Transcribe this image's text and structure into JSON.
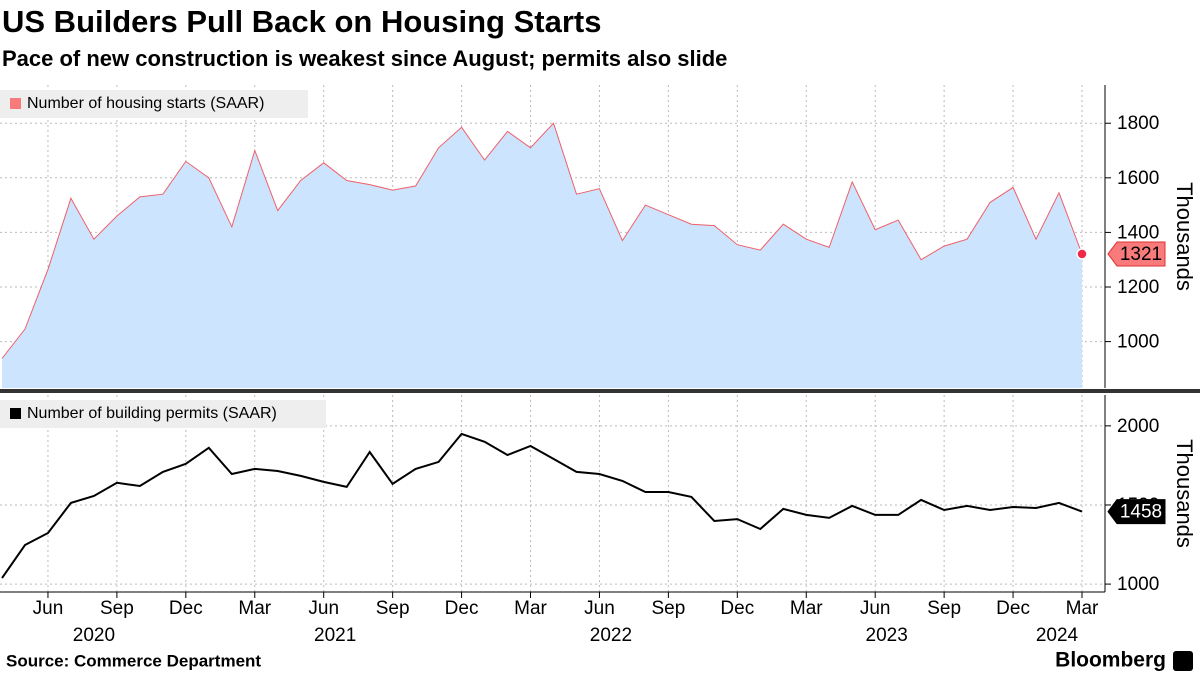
{
  "title": "US Builders Pull Back on Housing Starts",
  "subtitle": "Pace of new construction is weakest since August; permits also slide",
  "source": "Source: Commerce Department",
  "brand": "Bloomberg",
  "chart_data": [
    {
      "type": "area",
      "legend_position": "top-left",
      "grid": true,
      "y_label": "Thousands",
      "x": [
        "2020-04",
        "2020-05",
        "2020-06",
        "2020-07",
        "2020-08",
        "2020-09",
        "2020-10",
        "2020-11",
        "2020-12",
        "2021-01",
        "2021-02",
        "2021-03",
        "2021-04",
        "2021-05",
        "2021-06",
        "2021-07",
        "2021-08",
        "2021-09",
        "2021-10",
        "2021-11",
        "2021-12",
        "2022-01",
        "2022-02",
        "2022-03",
        "2022-04",
        "2022-05",
        "2022-06",
        "2022-07",
        "2022-08",
        "2022-09",
        "2022-10",
        "2022-11",
        "2022-12",
        "2023-01",
        "2023-02",
        "2023-03",
        "2023-04",
        "2023-05",
        "2023-06",
        "2023-07",
        "2023-08",
        "2023-09",
        "2023-10",
        "2023-11",
        "2023-12",
        "2024-01",
        "2024-02",
        "2024-03"
      ],
      "series": [
        {
          "name": "Number of housing starts (SAAR)",
          "color": "#f0606a",
          "fill": "#cce4fd",
          "values": [
            938,
            1046,
            1265,
            1525,
            1375,
            1460,
            1530,
            1540,
            1660,
            1600,
            1420,
            1700,
            1480,
            1590,
            1655,
            1590,
            1575,
            1555,
            1570,
            1710,
            1785,
            1665,
            1770,
            1710,
            1800,
            1540,
            1560,
            1370,
            1500,
            1465,
            1430,
            1425,
            1355,
            1335,
            1430,
            1375,
            1345,
            1585,
            1410,
            1445,
            1300,
            1350,
            1375,
            1510,
            1565,
            1375,
            1545,
            1321
          ]
        }
      ],
      "ylim": [
        830,
        1940
      ],
      "yticks": [
        1000,
        1200,
        1400,
        1600,
        1800
      ]
    },
    {
      "type": "line",
      "legend_position": "top-left",
      "grid": true,
      "y_label": "Thousands",
      "x": [
        "2020-04",
        "2020-05",
        "2020-06",
        "2020-07",
        "2020-08",
        "2020-09",
        "2020-10",
        "2020-11",
        "2020-12",
        "2021-01",
        "2021-02",
        "2021-03",
        "2021-04",
        "2021-05",
        "2021-06",
        "2021-07",
        "2021-08",
        "2021-09",
        "2021-10",
        "2021-11",
        "2021-12",
        "2022-01",
        "2022-02",
        "2022-03",
        "2022-04",
        "2022-05",
        "2022-06",
        "2022-07",
        "2022-08",
        "2022-09",
        "2022-10",
        "2022-11",
        "2022-12",
        "2023-01",
        "2023-02",
        "2023-03",
        "2023-04",
        "2023-05",
        "2023-06",
        "2023-07",
        "2023-08",
        "2023-09",
        "2023-10",
        "2023-11",
        "2023-12",
        "2024-01",
        "2024-02",
        "2024-03"
      ],
      "series": [
        {
          "name": "Number of building permits (SAAR)",
          "color": "#000000",
          "values": [
            1038,
            1247,
            1323,
            1513,
            1557,
            1640,
            1620,
            1709,
            1760,
            1861,
            1696,
            1728,
            1715,
            1684,
            1646,
            1614,
            1835,
            1633,
            1728,
            1772,
            1949,
            1899,
            1816,
            1873,
            1791,
            1709,
            1696,
            1652,
            1582,
            1582,
            1551,
            1399,
            1411,
            1348,
            1475,
            1437,
            1418,
            1494,
            1437,
            1437,
            1532,
            1468,
            1494,
            1468,
            1487,
            1481,
            1513,
            1458
          ]
        }
      ],
      "ylim": [
        950,
        2195
      ],
      "yticks": [
        1000,
        1500,
        2000
      ],
      "xticks": [
        {
          "value": "2020-06",
          "label": "Jun"
        },
        {
          "value": "2020-09",
          "label": "Sep"
        },
        {
          "value": "2020-12",
          "label": "Dec"
        },
        {
          "value": "2021-03",
          "label": "Mar"
        },
        {
          "value": "2021-06",
          "label": "Jun"
        },
        {
          "value": "2021-09",
          "label": "Sep"
        },
        {
          "value": "2021-12",
          "label": "Dec"
        },
        {
          "value": "2022-03",
          "label": "Mar"
        },
        {
          "value": "2022-06",
          "label": "Jun"
        },
        {
          "value": "2022-09",
          "label": "Sep"
        },
        {
          "value": "2022-12",
          "label": "Dec"
        },
        {
          "value": "2023-03",
          "label": "Mar"
        },
        {
          "value": "2023-06",
          "label": "Jun"
        },
        {
          "value": "2023-09",
          "label": "Sep"
        },
        {
          "value": "2023-12",
          "label": "Dec"
        },
        {
          "value": "2024-03",
          "label": "Mar"
        }
      ],
      "year_labels": [
        "2020",
        "2021",
        "2022",
        "2023",
        "2024"
      ]
    }
  ]
}
